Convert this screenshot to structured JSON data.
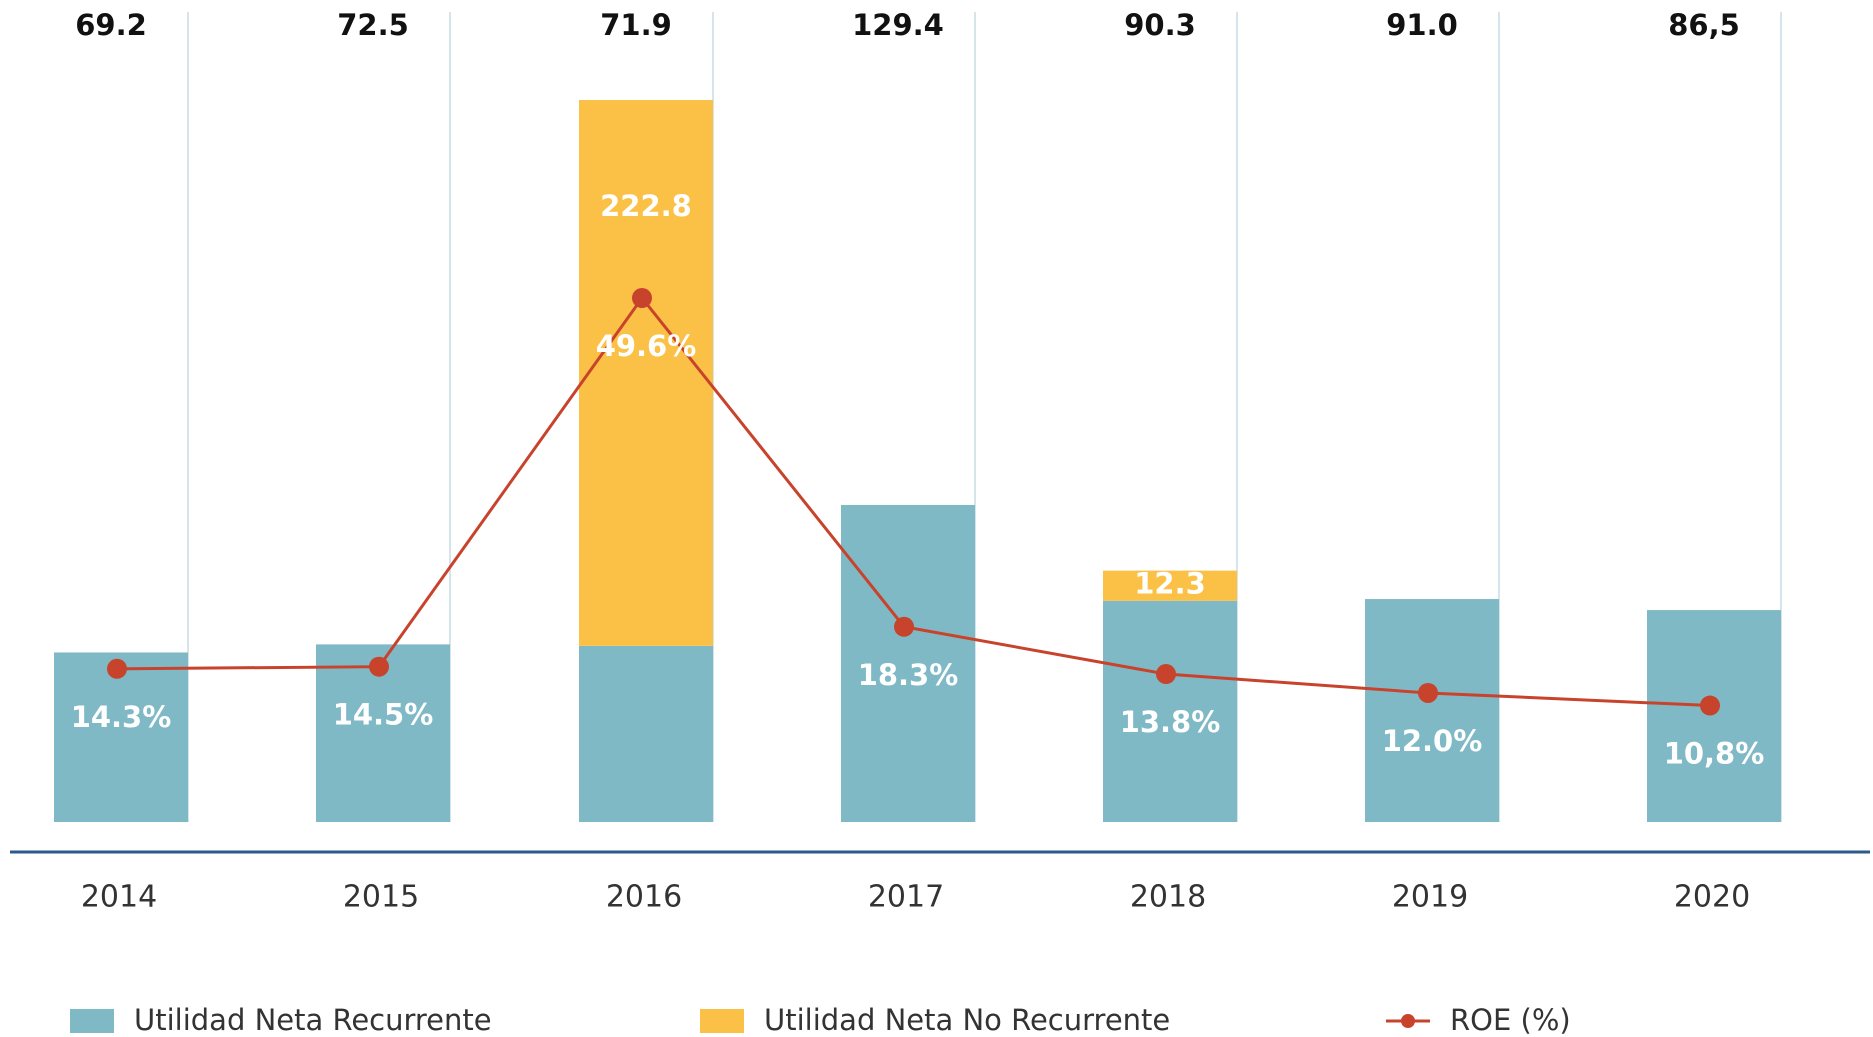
{
  "chart_data": {
    "type": "bar",
    "categories": [
      "2014",
      "2015",
      "2016",
      "2017",
      "2018",
      "2019",
      "2020"
    ],
    "stacked": true,
    "series": [
      {
        "name": "Utilidad Neta Recurrente",
        "color": "#80b9c6",
        "values": [
          69.2,
          72.5,
          71.9,
          129.4,
          90.3,
          91.0,
          86.5
        ],
        "value_labels": [
          "69.2",
          "72.5",
          "71.9",
          "129.4",
          "90.3",
          "91.0",
          "86,5"
        ]
      },
      {
        "name": "Utilidad Neta No Recurrente",
        "color": "#fbc146",
        "values": [
          null,
          null,
          222.8,
          null,
          12.3,
          null,
          null
        ]
      },
      {
        "name": "ROE (%)",
        "type": "line",
        "color": "#c8432c",
        "values": [
          14.3,
          14.5,
          49.6,
          18.3,
          13.8,
          12.0,
          10.8
        ],
        "value_labels": [
          "14.3%",
          "14.5%",
          "49.6%",
          "18.3%",
          "13.8%",
          "12.0%",
          "10,8%"
        ]
      }
    ],
    "grid": true
  }
}
